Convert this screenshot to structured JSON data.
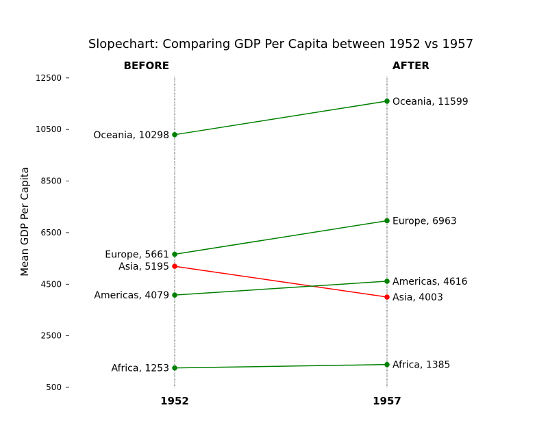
{
  "chart_data": {
    "type": "line",
    "title": "Slopechart: Comparing GDP Per Capita between 1952 vs 1957",
    "ylabel": "Mean GDP Per Capita",
    "xlabel": "",
    "ylim": [
      500,
      13000
    ],
    "yticks": [
      500,
      2500,
      4500,
      6500,
      8500,
      10500,
      12500
    ],
    "x_categories": [
      "1952",
      "1957"
    ],
    "left_header": "BEFORE",
    "right_header": "AFTER",
    "grid": false,
    "increase_color": "#008000",
    "decrease_color": "#ff0000",
    "series": [
      {
        "name": "Oceania",
        "before": 10298,
        "after": 11599
      },
      {
        "name": "Europe",
        "before": 5661,
        "after": 6963
      },
      {
        "name": "Asia",
        "before": 5195,
        "after": 4003
      },
      {
        "name": "Americas",
        "before": 4079,
        "after": 4616
      },
      {
        "name": "Africa",
        "before": 1253,
        "after": 1385
      }
    ]
  }
}
